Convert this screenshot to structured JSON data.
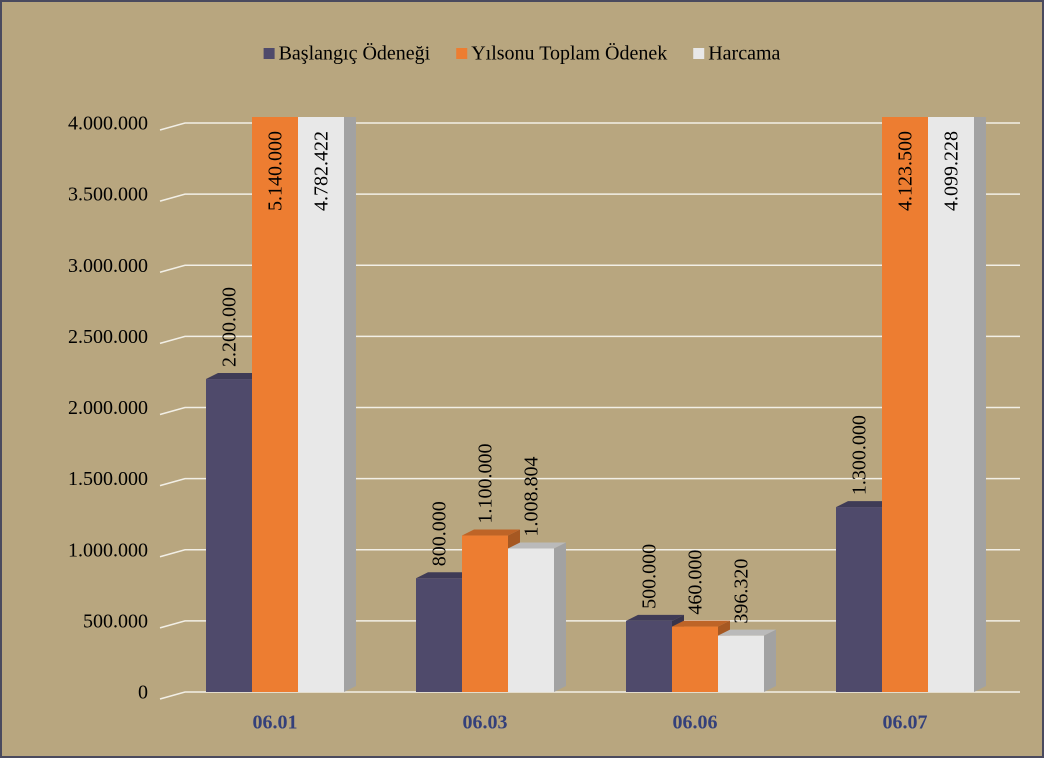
{
  "chart_data": {
    "type": "bar3d",
    "categories": [
      "06.01",
      "06.03",
      "06.06",
      "06.07"
    ],
    "series": [
      {
        "name": "Başlangıç Ödeneği",
        "color": "#4f4a6b",
        "values": [
          2200000,
          800000,
          500000,
          1300000
        ],
        "value_labels": [
          "2.200.000",
          "800.000",
          "500.000",
          "1.300.000"
        ]
      },
      {
        "name": "Yılsonu Toplam Ödenek",
        "color": "#ed7d31",
        "values": [
          5140000,
          1100000,
          460000,
          4123500
        ],
        "value_labels": [
          "5.140.000",
          "1.100.000",
          "460.000",
          "4.123.500"
        ]
      },
      {
        "name": "Harcama",
        "color": "#e8e8e8",
        "values": [
          4782422,
          1008804,
          396320,
          4099228
        ],
        "value_labels": [
          "4.782.422",
          "1.008.804",
          "396.320",
          "4.099.228"
        ]
      }
    ],
    "ylim": [
      0,
      4000000
    ],
    "yticks": [
      0,
      {
        "value": 500000,
        "label": "500.000"
      },
      {
        "value": 1000000,
        "label": "1.000.000"
      },
      {
        "value": 1500000,
        "label": "1.500.000"
      },
      {
        "value": 2000000,
        "label": "2.000.000"
      },
      {
        "value": 2500000,
        "label": "2.500.000"
      },
      {
        "value": 3000000,
        "label": "3.000.000"
      },
      {
        "value": 3500000,
        "label": "3.500.000"
      },
      {
        "value": 4000000,
        "label": "4.000.000"
      }
    ],
    "grid": true,
    "legend": "top"
  }
}
